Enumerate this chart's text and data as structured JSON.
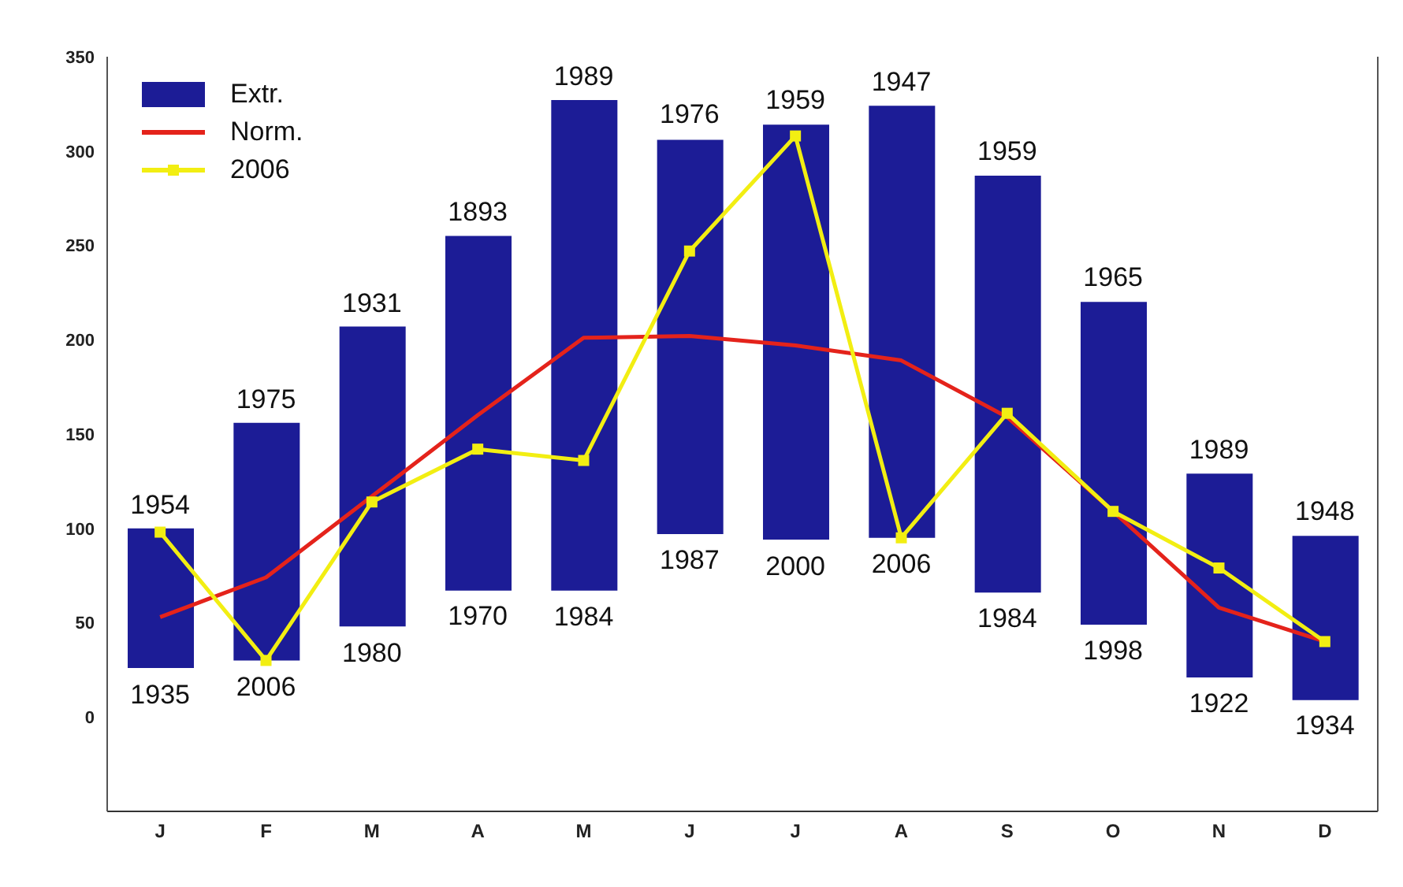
{
  "chart_data": {
    "type": "bar",
    "categories": [
      "J",
      "F",
      "M",
      "A",
      "M",
      "J",
      "J",
      "A",
      "S",
      "O",
      "N",
      "D"
    ],
    "series": [
      {
        "name": "Extr.",
        "color": "#1c1c96",
        "base": [
          26,
          30,
          48,
          67,
          67,
          97,
          94,
          95,
          66,
          49,
          21,
          9
        ],
        "values": [
          74,
          126,
          159,
          188,
          260,
          209,
          220,
          229,
          221,
          171,
          108,
          87
        ]
      },
      {
        "name": "Norm.",
        "type": "line",
        "color": "#e4231b",
        "marker": "none",
        "values": [
          53,
          74,
          117,
          160,
          201,
          202,
          197,
          189,
          159,
          109,
          58,
          40
        ]
      },
      {
        "name": "2006",
        "type": "line",
        "color": "#f2ee12",
        "marker": "square",
        "values": [
          98,
          30,
          114,
          142,
          136,
          247,
          308,
          95,
          161,
          109,
          79,
          40
        ]
      }
    ],
    "ylim": [
      -50,
      350
    ],
    "yticks": [
      0,
      50,
      100,
      150,
      200,
      250,
      300,
      350
    ],
    "legend": "top left",
    "annotations": [
      {
        "text": "1954",
        "y": 99.6
      },
      {
        "text": "1935",
        "y": 25.6
      },
      {
        "text": "1975",
        "y": 155.6
      },
      {
        "text": "2006",
        "y": 29.6
      },
      {
        "text": "1931",
        "y": 206.5
      },
      {
        "text": "1980",
        "y": 47.9
      },
      {
        "text": "1893",
        "y": 255
      },
      {
        "text": "1970",
        "y": 67.3
      },
      {
        "text": "1989",
        "y": 326.6
      },
      {
        "text": "1984",
        "y": 67
      },
      {
        "text": "1976",
        "y": 306.4
      },
      {
        "text": "1987",
        "y": 97
      },
      {
        "text": "1959",
        "y": 314
      },
      {
        "text": "2000",
        "y": 93.7
      },
      {
        "text": "1947",
        "y": 323.6
      },
      {
        "text": "2006",
        "y": 95
      },
      {
        "text": "1959",
        "y": 287
      },
      {
        "text": "1984",
        "y": 66
      },
      {
        "text": "1965",
        "y": 220
      },
      {
        "text": "1998",
        "y": 49
      },
      {
        "text": "1989",
        "y": 128.7
      },
      {
        "text": "1922",
        "y": 21
      },
      {
        "text": "1948",
        "y": 96
      },
      {
        "text": "1934",
        "y": 9.4
      }
    ]
  }
}
